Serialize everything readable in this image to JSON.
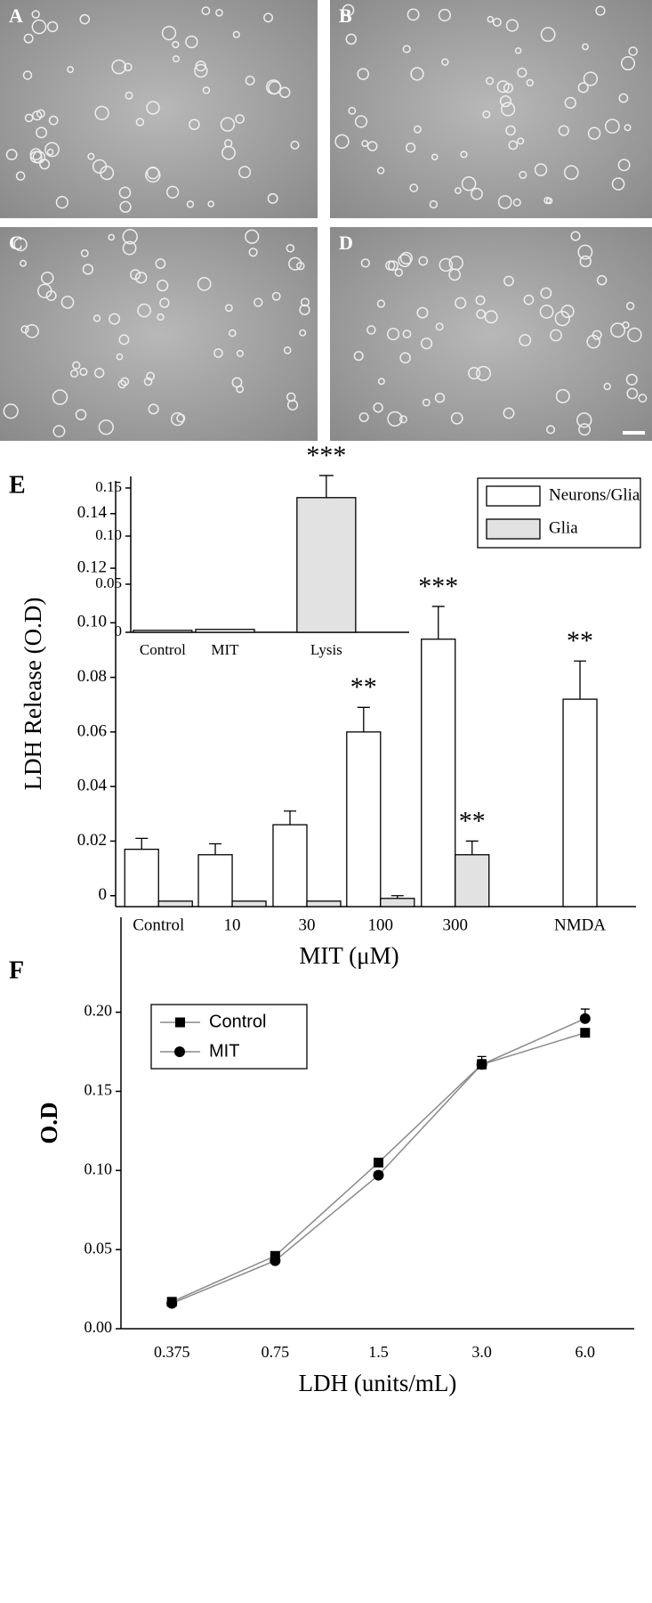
{
  "panels": [
    {
      "label": "A"
    },
    {
      "label": "B"
    },
    {
      "label": "C"
    },
    {
      "label": "D"
    }
  ],
  "chart_data": [
    {
      "type": "bar",
      "panel_label": "E",
      "categories": [
        "Control",
        "10",
        "30",
        "100",
        "300",
        "NMDA"
      ],
      "x_label": "MIT (μM)",
      "y_label": "LDH Release (O.D)",
      "ylim": [
        -0.004,
        0.152
      ],
      "yticks": [
        0,
        0.02,
        0.04,
        0.06,
        0.08,
        {
          "value": 0.1,
          "label": "0.10"
        },
        0.12,
        0.14
      ],
      "series": [
        {
          "name": "Neurons/Glia",
          "color": "#ffffff",
          "values": [
            0.017,
            0.015,
            0.026,
            0.06,
            0.094,
            0.072
          ],
          "errors": [
            0.004,
            0.004,
            0.005,
            0.009,
            0.012,
            0.014
          ]
        },
        {
          "name": "Glia",
          "color": "#e2e2e2",
          "values": [
            -0.002,
            -0.002,
            -0.002,
            -0.001,
            0.015,
            null
          ],
          "errors": [
            null,
            null,
            null,
            0.001,
            0.005,
            null
          ]
        }
      ],
      "annotations": [
        {
          "text": "**",
          "series": "Neurons/Glia",
          "category": "100"
        },
        {
          "text": "***",
          "series": "Neurons/Glia",
          "category": "300"
        },
        {
          "text": "**",
          "series": "Glia",
          "category": "300"
        },
        {
          "text": "**",
          "series": "Neurons/Glia",
          "category": "NMDA"
        }
      ],
      "legend": "upper right"
    },
    {
      "type": "bar",
      "categories": [
        "Control",
        "MIT",
        "Lysis"
      ],
      "values": [
        0.002,
        0.003,
        0.14
      ],
      "errors": [
        null,
        null,
        0.023
      ],
      "colors": [
        "#ffffff",
        "#ffffff",
        "#e2e2e2"
      ],
      "ylim": [
        0,
        0.162
      ],
      "yticks": [
        0,
        0.05,
        {
          "value": 0.1,
          "label": "0.10"
        },
        0.15
      ],
      "annotations": [
        {
          "text": "***",
          "category": "Lysis"
        }
      ]
    },
    {
      "type": "line",
      "panel_label": "F",
      "categories": [
        "0.375",
        "0.75",
        "1.5",
        "3.0",
        "6.0"
      ],
      "x_label": "LDH (units/mL)",
      "y_label": "O.D",
      "ylim": [
        0,
        0.26
      ],
      "yticks": [
        {
          "value": 0,
          "label": "0.00"
        },
        0.05,
        {
          "value": 0.1,
          "label": "0.10"
        },
        0.15,
        {
          "value": 0.2,
          "label": "0.20"
        }
      ],
      "line_color": "#8a8a8a",
      "series": [
        {
          "name": "Control",
          "marker": "square",
          "color": "#000000",
          "values": [
            0.017,
            0.046,
            0.105,
            0.167,
            0.187
          ],
          "errors": [
            0.001,
            0.002,
            0.002,
            0.005,
            0.002
          ]
        },
        {
          "name": "MIT",
          "marker": "circle",
          "color": "#000000",
          "values": [
            0.016,
            0.043,
            0.097,
            0.167,
            0.196
          ],
          "errors": [
            0.001,
            0.001,
            0.002,
            0.003,
            0.006
          ]
        }
      ],
      "legend": "upper left"
    }
  ]
}
